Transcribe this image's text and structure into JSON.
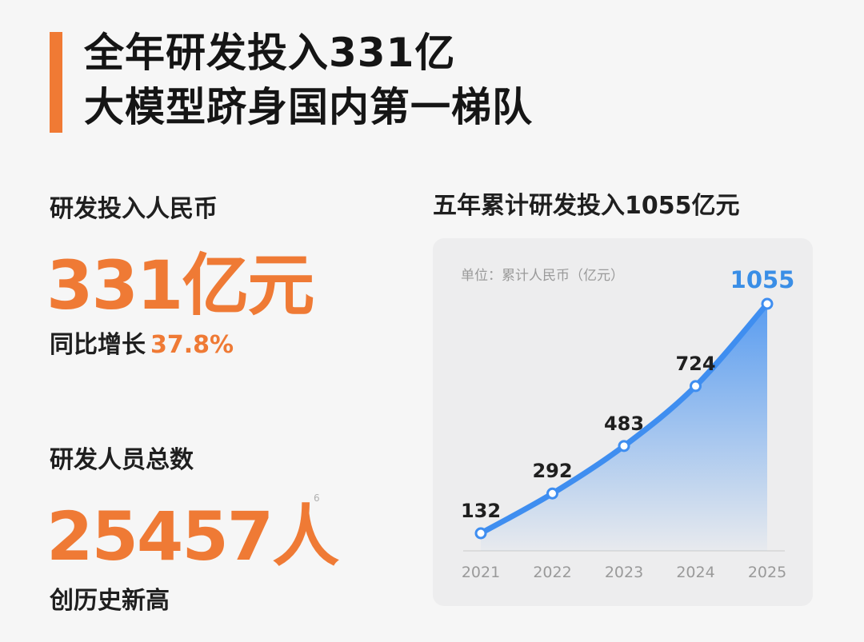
{
  "headline": {
    "line1": "全年研发投入331亿",
    "line2": "大模型跻身国内第一梯队"
  },
  "rd_investment": {
    "label": "研发投入人民币",
    "value": "331亿元",
    "growth_label": "同比增长",
    "growth_value": "37.8%"
  },
  "rd_staff": {
    "label": "研发人员总数",
    "value": "25457人",
    "note": "创历史新高",
    "footnote_mark": "6"
  },
  "chart_data": {
    "type": "area",
    "title": "五年累计研发投入1055亿元",
    "unit_label": "单位：累计人民币（亿元）",
    "categories": [
      "2021",
      "2022",
      "2023",
      "2024",
      "2025"
    ],
    "values": [
      132,
      292,
      483,
      724,
      1055
    ],
    "value_labels": [
      "132",
      "292",
      "483",
      "724",
      "1055"
    ],
    "colors": {
      "line": "#3f8ef0",
      "highlight": "#3a8ee6",
      "label": "#1f1f1f",
      "axis": "#d6d6d6",
      "tick": "#9a9a9a"
    }
  },
  "colors": {
    "accent": "#ef7a35",
    "background": "#f6f6f6"
  }
}
